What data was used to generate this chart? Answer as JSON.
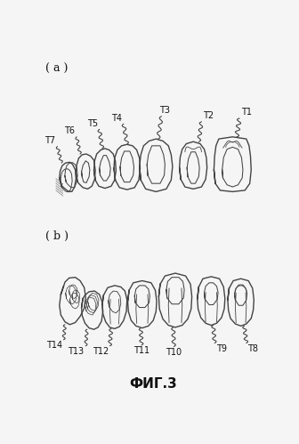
{
  "title": "ФИГ.3",
  "label_a": "( a )",
  "label_b": "( b )",
  "bg_color": "#f5f5f5",
  "line_color": "#444444",
  "text_color": "#111111",
  "figsize": [
    3.36,
    4.99
  ],
  "dpi": 100
}
